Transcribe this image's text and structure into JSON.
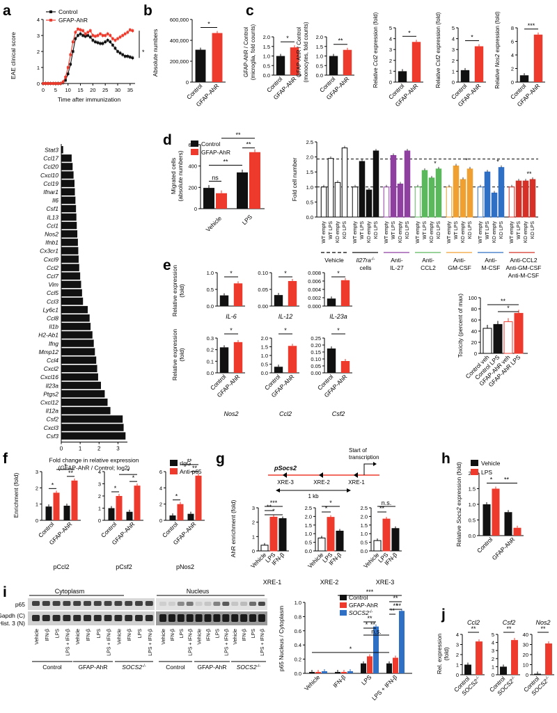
{
  "colors": {
    "control": "#111111",
    "ahr": "#ee3a2c",
    "socs2": "#2f6fc4",
    "ctrl_open": "#ffffff"
  },
  "panel_labels": {
    "a": "a",
    "b": "b",
    "c": "c",
    "d": "d",
    "e": "e",
    "f": "f",
    "g": "g",
    "h": "h",
    "i": "i",
    "j": "j"
  },
  "common": {
    "control": "Control",
    "ahr": "GFAP-AhR",
    "socs2": "SOCS2",
    "socs2_sup": "-/-",
    "rel_expr_fold": "Relative expression (fold)",
    "rel_expr_fold_1": "Relative expression",
    "rel_expr_fold_2": "(fold)",
    "vehicle": "Vehicle",
    "lps": "LPS",
    "ifnb": "IFN-β",
    "lps_ifnb": "LPS + IFN-β"
  },
  "panel_a": {
    "ylabel": "EAE clinical score",
    "xlabel": "Time after immunization",
    "legend": [
      "Control",
      "GFAP-AhR"
    ],
    "sig": "*",
    "xticks": [
      "0",
      "5",
      "10",
      "15",
      "20",
      "25",
      "30",
      "35"
    ],
    "yticks": [
      "0",
      "1",
      "2",
      "3",
      "4"
    ],
    "x": [
      0,
      1,
      2,
      3,
      4,
      5,
      6,
      7,
      8,
      9,
      10,
      11,
      12,
      13,
      14,
      15,
      16,
      17,
      18,
      19,
      20,
      21,
      22,
      23,
      24,
      25,
      26,
      27,
      28,
      29,
      30,
      31,
      32,
      33,
      34,
      35,
      36
    ],
    "control": [
      0,
      0,
      0,
      0,
      0,
      0,
      0,
      0,
      0.05,
      0.2,
      0.6,
      1.2,
      2.0,
      2.8,
      3.0,
      3.1,
      3.0,
      2.95,
      3.0,
      2.9,
      2.7,
      2.6,
      2.55,
      2.5,
      2.5,
      2.6,
      2.7,
      2.6,
      2.4,
      2.2,
      2.0,
      1.9,
      1.8,
      1.7,
      1.7,
      1.65,
      1.6
    ],
    "ahr": [
      0,
      0,
      0,
      0,
      0,
      0,
      0,
      0,
      0.1,
      0.4,
      1.0,
      1.8,
      2.6,
      3.2,
      3.4,
      3.35,
      3.3,
      3.1,
      3.2,
      3.3,
      3.0,
      2.95,
      3.0,
      3.1,
      3.0,
      3.0,
      3.1,
      3.0,
      2.8,
      2.7,
      2.8,
      2.9,
      3.0,
      3.1,
      3.2,
      3.35,
      3.3
    ]
  },
  "panel_b": {
    "ylabel": "Absolute numbers",
    "yticks": [
      "0",
      "200,000",
      "400,000",
      "600,000"
    ],
    "values": [
      310000,
      470000
    ],
    "ymax": 600000,
    "sig": "*"
  },
  "panel_c1": {
    "ylabel_1": "GFAP-AhR / Control",
    "ylabel_2": "(microglia, fold counts)",
    "yticks": [
      "0.0",
      "0.5",
      "1.0",
      "1.5",
      "2.0"
    ],
    "values": [
      1.0,
      1.45
    ],
    "ymax": 2.0,
    "sig": "*"
  },
  "panel_c2": {
    "ylabel_1": "GFAP-AhR / Control",
    "ylabel_2": "(monocytes, fold counts)",
    "yticks": [
      "0.0",
      "0.5",
      "1.0",
      "1.5",
      "2.0"
    ],
    "values": [
      1.0,
      1.32
    ],
    "ymax": 2.0,
    "sig": "**"
  },
  "panel_c3": {
    "ylabel_pre": "Relative ",
    "gene": "Ccl2",
    "ylabel_post": " expression (fold)",
    "yticks": [
      "0",
      "1",
      "2",
      "3",
      "4",
      "5"
    ],
    "values": [
      1.0,
      3.7
    ],
    "ymax": 5,
    "sig": "*"
  },
  "panel_c4": {
    "ylabel_pre": "Relative ",
    "gene": "Csf2",
    "ylabel_post": " expression (fold)",
    "yticks": [
      "0",
      "1",
      "2",
      "3",
      "4",
      "5"
    ],
    "values": [
      1.1,
      3.3
    ],
    "ymax": 5,
    "sig": "*"
  },
  "panel_c5": {
    "ylabel_pre": "Relative ",
    "gene": "Nos2",
    "ylabel_post": " expression (fold)",
    "yticks": [
      "0",
      "2",
      "4",
      "6",
      "8"
    ],
    "values": [
      1.0,
      7.0
    ],
    "ymax": 8,
    "sig": "***"
  },
  "panel_waterfall": {
    "xlabel_1": "Fold change in relative expression",
    "xlabel_2": "(GFAP-AhR / Control; log2)",
    "xticks": [
      "0",
      "1",
      "2",
      "3"
    ],
    "genes": [
      "Stat3",
      "Ccl17",
      "Ccl20",
      "Cxcl10",
      "Ccl19",
      "Ifnar1",
      "Il6",
      "Csf1",
      "IL13",
      "Ccl1",
      "Nos2",
      "Ifnb1",
      "Cx3cr1",
      "Cxcl9",
      "Ccl2",
      "Ccl7",
      "Vim",
      "Ccl5",
      "Ccl3",
      "Ly6c1",
      "Ccl8",
      "Il1b",
      "H2-Ab1",
      "Ifng",
      "Mmp12",
      "Ccl4",
      "Cxcl2",
      "Cxcl16",
      "Il23a",
      "Ptgs2",
      "Cxcl12",
      "Il12a",
      "Csf2",
      "Cxcl3",
      "Csf3"
    ],
    "values": [
      0.1,
      0.55,
      0.6,
      0.65,
      0.7,
      0.72,
      0.75,
      0.78,
      0.8,
      0.82,
      0.85,
      0.88,
      0.9,
      0.92,
      0.95,
      1.0,
      1.05,
      1.1,
      1.15,
      1.4,
      1.5,
      1.55,
      1.65,
      1.72,
      1.78,
      1.85,
      1.9,
      1.95,
      2.1,
      2.3,
      2.45,
      2.6,
      3.25,
      3.3,
      3.4
    ]
  },
  "panel_d1": {
    "ylabel_1": "Migrated cells",
    "ylabel_2": "(absolute numbers)",
    "yticks": [
      "0",
      "200",
      "400",
      "600"
    ],
    "ymax": 600,
    "groups": [
      "Vehicle",
      "LPS"
    ],
    "control": [
      195,
      340
    ],
    "ahr": [
      145,
      530
    ],
    "sig_ns": "ns",
    "sig_1": "**",
    "sig_2": "**",
    "sig_3": "**"
  },
  "panel_d2": {
    "ylabel": "Fold cell number",
    "yticks": [
      "0.0",
      "0.5",
      "1.0",
      "1.5",
      "2.0",
      "2.5"
    ],
    "ymax": 2.5,
    "cond_labels": [
      "WT empty",
      "WT LPS",
      "KO empty",
      "KO LPS"
    ],
    "groups": [
      {
        "name": "Vehicle",
        "color": "#ffffff",
        "values": [
          1.0,
          1.95,
          1.15,
          2.3
        ],
        "sig": ""
      },
      {
        "name": "Il27ra-/- cells",
        "color": "#111111",
        "values": [
          1.0,
          1.85,
          0.9,
          2.2
        ],
        "sig": ""
      },
      {
        "name": "Anti-IL-27",
        "color": "#8e3fa0",
        "values": [
          1.0,
          2.05,
          1.1,
          2.2
        ],
        "sig": ""
      },
      {
        "name": "Anti-CCL2",
        "color": "#5cb85c",
        "values": [
          1.0,
          1.55,
          1.3,
          1.6
        ],
        "sig": "*"
      },
      {
        "name": "Anti-GM-CSF",
        "color": "#f0a030",
        "values": [
          1.0,
          1.7,
          1.25,
          1.6
        ],
        "sig": "*"
      },
      {
        "name": "Anti-M-CSF",
        "color": "#2f6fc4",
        "values": [
          1.0,
          1.5,
          0.8,
          1.65
        ],
        "sig": "*"
      },
      {
        "name": "Anti-CCL2 Anti-GM-CSF Anti-M-CSF",
        "color": "#d73027",
        "values": [
          1.0,
          1.2,
          1.2,
          1.25
        ],
        "sig": "**"
      }
    ],
    "group_names": [
      "Vehicle",
      "Il27ra",
      "cells",
      "Anti-",
      "IL-27",
      "Anti-",
      "CCL2",
      "Anti-",
      "GM-CSF",
      "Anti-",
      "M-CSF",
      "Anti-CCL2",
      "Anti-GM-CSF",
      "Anti-M-CSF"
    ],
    "il27ra_sup": "-/-"
  },
  "panel_e": {
    "top": [
      {
        "gene": "IL-6",
        "yticks": [
          "0.0",
          "0.5",
          "1.0"
        ],
        "ymax": 1.0,
        "values": [
          0.32,
          0.68
        ],
        "sig": "*"
      },
      {
        "gene": "IL-12",
        "yticks": [
          "0.00",
          "0.05",
          "0.10"
        ],
        "ymax": 0.1,
        "values": [
          0.033,
          0.075
        ],
        "sig": "*"
      },
      {
        "gene": "IL-23a",
        "yticks": [
          "0.000",
          "0.002",
          "0.004",
          "0.006",
          "0.008"
        ],
        "ymax": 0.008,
        "values": [
          0.0018,
          0.0062
        ],
        "sig": "*"
      }
    ],
    "bottom": [
      {
        "gene": "Nos2",
        "yticks": [
          "0.0",
          "0.1",
          "0.2",
          "0.3"
        ],
        "ymax": 0.3,
        "values": [
          0.22,
          0.265
        ],
        "sig": "*"
      },
      {
        "gene": "Ccl2",
        "yticks": [
          "0.0",
          "0.5",
          "1.0",
          "1.5",
          "2.0"
        ],
        "ymax": 2.0,
        "values": [
          0.35,
          1.55
        ],
        "sig": "*"
      },
      {
        "gene": "Csf2",
        "yticks": [
          "0.00",
          "0.05",
          "0.10",
          "0.15",
          "0.20",
          "0.25"
        ],
        "ymax": 0.25,
        "values": [
          0.175,
          0.085
        ],
        "sig": "*"
      }
    ],
    "tox": {
      "ylabel": "Toxicity (percent of max)",
      "yticks": [
        "0",
        "20",
        "40",
        "60",
        "80",
        "100"
      ],
      "ymax": 100,
      "labels": [
        "Control veh",
        "Control LPS",
        "GFAP-AhR veh",
        "GFAP-AhR LPS"
      ],
      "values": [
        45,
        52,
        57,
        72
      ],
      "sig_1": "**",
      "sig_2": "*"
    }
  },
  "panel_f": {
    "ylabel": "Enrichment (fold)",
    "legend": [
      "rIgG",
      "Anti-p65"
    ],
    "plots": [
      {
        "name": "pCcl2",
        "yticks": [
          "0",
          "1",
          "2",
          "3"
        ],
        "ymax": 3,
        "rigg": [
          0.85,
          0.9
        ],
        "p65": [
          1.7,
          2.45
        ],
        "sigs": [
          "*",
          "*",
          "**"
        ]
      },
      {
        "name": "pCsf2",
        "yticks": [
          "0",
          "1",
          "2",
          "3",
          "4"
        ],
        "ymax": 4,
        "rigg": [
          1.0,
          0.7
        ],
        "p65": [
          2.0,
          2.85
        ],
        "sigs": [
          "*",
          "*",
          "*"
        ]
      },
      {
        "name": "pNos2",
        "yticks": [
          "0",
          "2",
          "4",
          "6"
        ],
        "ymax": 6,
        "rigg": [
          0.6,
          0.8
        ],
        "p65": [
          2.0,
          5.5
        ],
        "sigs": [
          "*",
          "**",
          "**"
        ]
      }
    ]
  },
  "panel_g": {
    "promoter": "pSocs2",
    "start_1": "Start of",
    "start_2": "transcription",
    "scale": "1 kb",
    "xre": [
      "XRE-3",
      "XRE-2",
      "XRE-1"
    ],
    "ylabel": "AhR enrichment (fold)",
    "conds": [
      "Vehicle",
      "LPS",
      "IFN-β"
    ],
    "plots": [
      {
        "name": "XRE-1",
        "yticks": [
          "0",
          "1",
          "2",
          "3"
        ],
        "ymax": 3,
        "values": [
          0.4,
          2.35,
          2.25
        ],
        "sigs": [
          "***",
          "**",
          "*"
        ]
      },
      {
        "name": "XRE-2",
        "yticks": [
          "0.0",
          "0.5",
          "1.0",
          "1.5",
          "2.0",
          "2.5"
        ],
        "ymax": 2.5,
        "values": [
          0.75,
          1.95,
          1.15
        ],
        "sigs": [
          "*",
          "*"
        ]
      },
      {
        "name": "XRE-3",
        "yticks": [
          "0.0",
          "0.5",
          "1.0",
          "1.5",
          "2.0",
          "2.5"
        ],
        "ymax": 2.5,
        "values": [
          0.6,
          1.85,
          1.3
        ],
        "sigs": [
          "n.s.",
          "**"
        ]
      }
    ]
  },
  "panel_h": {
    "ylabel_pre": "Relative ",
    "gene": "Socs2",
    "ylabel_post": " expression (fold)",
    "legend": [
      "Vehicle",
      "LPS"
    ],
    "yticks": [
      "0.0",
      "0.5",
      "1.0",
      "1.5",
      "2.0"
    ],
    "ymax": 2.0,
    "vehicle": [
      1.0,
      0.75
    ],
    "lps": [
      1.5,
      0.25
    ],
    "sigs": [
      "*",
      "**"
    ]
  },
  "panel_i": {
    "cytoplasm": "Cytoplasm",
    "nucleus": "Nucleus",
    "row_labels": [
      "p65",
      "Gapdh (C)",
      "Hist. 3 (N)"
    ],
    "lane_labels": [
      "Vehicle",
      "IFN-β",
      "LPS",
      "LPS + IFN-β"
    ],
    "group_labels": [
      "Control",
      "GFAP-AhR",
      "SOCS2"
    ],
    "ylabel": "p65 Nucleus / Cytoplasm",
    "yticks": [
      "0.0",
      "0.2",
      "0.4",
      "0.6",
      "0.8",
      "1.0"
    ],
    "ymax": 1.0,
    "legend": [
      "Control",
      "GFAP-AhR",
      "SOCS2-/-"
    ],
    "conds": [
      "Vehicle",
      "IFN-β",
      "LPS",
      "LPS + IFN-β"
    ],
    "control": [
      0.02,
      0.02,
      0.14,
      0.14
    ],
    "ahr": [
      0.02,
      0.02,
      0.24,
      0.22
    ],
    "socs2": [
      0.03,
      0.03,
      0.66,
      0.88
    ],
    "sigs": [
      "*",
      "**",
      "**",
      "*",
      "**",
      "**",
      "**",
      "**",
      "n.s.",
      "***"
    ]
  },
  "panel_j": {
    "ylabel_1": "Rel. expression",
    "ylabel_2": "(fold)",
    "plots": [
      {
        "gene": "Ccl2",
        "yticks": [
          "0",
          "1",
          "2",
          "3",
          "4"
        ],
        "ymax": 4,
        "values": [
          1.0,
          3.3
        ],
        "sig": "**"
      },
      {
        "gene": "Csf2",
        "yticks": [
          "0",
          "1",
          "2",
          "3",
          "4",
          "5"
        ],
        "ymax": 5,
        "values": [
          1.0,
          4.3
        ],
        "sig": "**"
      },
      {
        "gene": "Nos2",
        "yticks": [
          "0",
          "10",
          "20",
          "30",
          "40"
        ],
        "ymax": 40,
        "values": [
          1.0,
          31
        ],
        "sig": "**"
      }
    ]
  }
}
